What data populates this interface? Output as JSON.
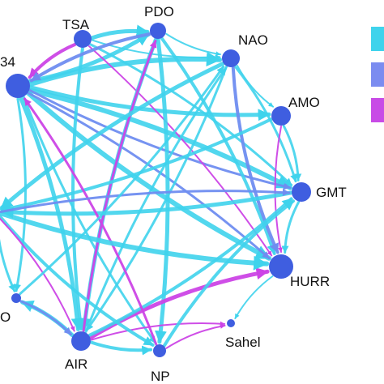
{
  "network": {
    "colors": {
      "cyan": "#3fd3ec",
      "blue": "#6f8df0",
      "magenta": "#cc44e6",
      "node": "#3f5ee0"
    },
    "nodes": [
      {
        "id": "n34",
        "label": "34"
      },
      {
        "id": "tsa",
        "label": "TSA"
      },
      {
        "id": "pdo",
        "label": "PDO"
      },
      {
        "id": "nao",
        "label": "NAO"
      },
      {
        "id": "amo",
        "label": "AMO"
      },
      {
        "id": "gmt",
        "label": "GMT"
      },
      {
        "id": "hurr",
        "label": "HURR"
      },
      {
        "id": "sahel",
        "label": "Sahel"
      },
      {
        "id": "np",
        "label": "NP"
      },
      {
        "id": "air",
        "label": "AIR"
      },
      {
        "id": "o",
        "label": "O"
      },
      {
        "id": "left",
        "label": ""
      }
    ],
    "edges": [
      {
        "from": "n34",
        "to": "pdo",
        "color": "cyan",
        "weight": 5
      },
      {
        "from": "n34",
        "to": "nao",
        "color": "cyan",
        "weight": 6
      },
      {
        "from": "n34",
        "to": "amo",
        "color": "cyan",
        "weight": 5
      },
      {
        "from": "n34",
        "to": "gmt",
        "color": "cyan",
        "weight": 6
      },
      {
        "from": "n34",
        "to": "hurr",
        "color": "cyan",
        "weight": 6
      },
      {
        "from": "n34",
        "to": "air",
        "color": "cyan",
        "weight": 5
      },
      {
        "from": "n34",
        "to": "np",
        "color": "cyan",
        "weight": 3
      },
      {
        "from": "n34",
        "to": "o",
        "color": "cyan",
        "weight": 3
      },
      {
        "from": "n34",
        "to": "gmt",
        "color": "blue",
        "weight": 3
      },
      {
        "from": "n34",
        "to": "hurr",
        "color": "blue",
        "weight": 3
      },
      {
        "from": "tsa",
        "to": "n34",
        "color": "magenta",
        "weight": 4
      },
      {
        "from": "tsa",
        "to": "pdo",
        "color": "cyan",
        "weight": 5
      },
      {
        "from": "tsa",
        "to": "nao",
        "color": "cyan",
        "weight": 2
      },
      {
        "from": "tsa",
        "to": "hurr",
        "color": "magenta",
        "weight": 2
      },
      {
        "from": "tsa",
        "to": "air",
        "color": "cyan",
        "weight": 4
      },
      {
        "from": "tsa",
        "to": "gmt",
        "color": "cyan",
        "weight": 3
      },
      {
        "from": "pdo",
        "to": "nao",
        "color": "cyan",
        "weight": 2
      },
      {
        "from": "pdo",
        "to": "hurr",
        "color": "cyan",
        "weight": 4
      },
      {
        "from": "pdo",
        "to": "air",
        "color": "cyan",
        "weight": 5
      },
      {
        "from": "pdo",
        "to": "np",
        "color": "cyan",
        "weight": 5
      },
      {
        "from": "pdo",
        "to": "n34",
        "color": "blue",
        "weight": 4
      },
      {
        "from": "air",
        "to": "pdo",
        "color": "magenta",
        "weight": 3
      },
      {
        "from": "nao",
        "to": "amo",
        "color": "cyan",
        "weight": 2
      },
      {
        "from": "nao",
        "to": "gmt",
        "color": "cyan",
        "weight": 3
      },
      {
        "from": "nao",
        "to": "hurr",
        "color": "blue",
        "weight": 4
      },
      {
        "from": "nao",
        "to": "air",
        "color": "cyan",
        "weight": 3
      },
      {
        "from": "nao",
        "to": "left",
        "color": "cyan",
        "weight": 5
      },
      {
        "from": "amo",
        "to": "gmt",
        "color": "cyan",
        "weight": 3
      },
      {
        "from": "amo",
        "to": "hurr",
        "color": "magenta",
        "weight": 2
      },
      {
        "from": "amo",
        "to": "left",
        "color": "cyan",
        "weight": 4
      },
      {
        "from": "gmt",
        "to": "hurr",
        "color": "cyan",
        "weight": 3
      },
      {
        "from": "gmt",
        "to": "left",
        "color": "cyan",
        "weight": 5
      },
      {
        "from": "hurr",
        "to": "sahel",
        "color": "cyan",
        "weight": 2
      },
      {
        "from": "air",
        "to": "hurr",
        "color": "magenta",
        "weight": 5
      },
      {
        "from": "air",
        "to": "gmt",
        "color": "cyan",
        "weight": 4
      },
      {
        "from": "air",
        "to": "nao",
        "color": "cyan",
        "weight": 3
      },
      {
        "from": "air",
        "to": "np",
        "color": "cyan",
        "weight": 4
      },
      {
        "from": "air",
        "to": "sahel",
        "color": "magenta",
        "weight": 2
      },
      {
        "from": "air",
        "to": "o",
        "color": "cyan",
        "weight": 5
      },
      {
        "from": "np",
        "to": "sahel",
        "color": "magenta",
        "weight": 2
      },
      {
        "from": "np",
        "to": "n34",
        "color": "magenta",
        "weight": 3
      },
      {
        "from": "np",
        "to": "gmt",
        "color": "cyan",
        "weight": 4
      },
      {
        "from": "left",
        "to": "hurr",
        "color": "cyan",
        "weight": 6
      },
      {
        "from": "left",
        "to": "gmt",
        "color": "blue",
        "weight": 3
      },
      {
        "from": "left",
        "to": "np",
        "color": "cyan",
        "weight": 4
      },
      {
        "from": "left",
        "to": "air",
        "color": "magenta",
        "weight": 2
      },
      {
        "from": "left",
        "to": "o",
        "color": "cyan",
        "weight": 3
      },
      {
        "from": "o",
        "to": "air",
        "color": "blue",
        "weight": 3
      },
      {
        "from": "o",
        "to": "nao",
        "color": "cyan",
        "weight": 3
      }
    ]
  },
  "legend": {
    "swatches": [
      {
        "color": "#3fd3ec"
      },
      {
        "color": "#7b8cf0"
      },
      {
        "color": "#c84be6"
      }
    ]
  }
}
